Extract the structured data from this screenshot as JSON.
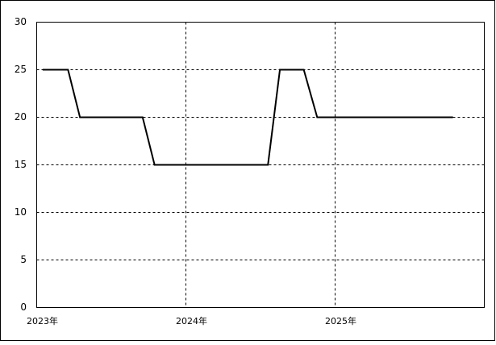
{
  "chart_data": {
    "type": "line",
    "x": [
      2023.04,
      2023.21,
      2023.29,
      2023.71,
      2023.79,
      2024.55,
      2024.63,
      2024.79,
      2024.88,
      2025.79
    ],
    "series": [
      {
        "color": "#000000",
        "values": [
          25,
          25,
          20,
          20,
          15,
          15,
          25,
          25,
          20,
          20
        ]
      }
    ],
    "xlim": [
      2023,
      2026
    ],
    "xticks": [
      {
        "value": 2023,
        "label": "2023年"
      },
      {
        "value": 2024,
        "label": "2024年"
      },
      {
        "value": 2025,
        "label": "2025年"
      }
    ],
    "ylim": [
      0,
      30
    ],
    "yticks": [
      0,
      5,
      10,
      15,
      20,
      25,
      30
    ],
    "grid": true
  }
}
